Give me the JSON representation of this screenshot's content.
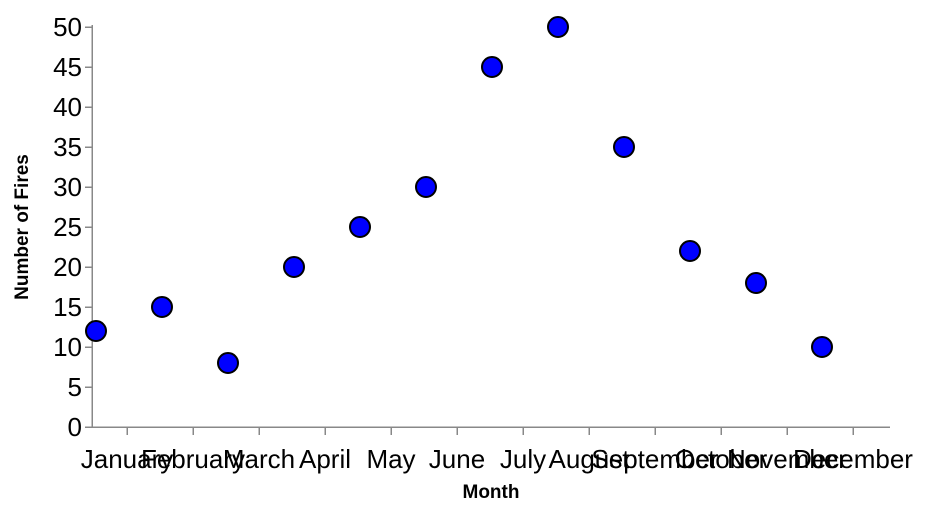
{
  "chart_data": {
    "type": "scatter",
    "title": "",
    "xlabel": "Month",
    "ylabel": "Number of Fires",
    "categories": [
      "January",
      "February",
      "March",
      "April",
      "May",
      "June",
      "July",
      "August",
      "September",
      "October",
      "November",
      "December"
    ],
    "series": [
      {
        "values": [
          12,
          15,
          8,
          20,
          25,
          30,
          45,
          50,
          35,
          22,
          18,
          10
        ]
      }
    ],
    "ylim": [
      0,
      50
    ],
    "yticks": [
      0,
      5,
      10,
      15,
      20,
      25,
      30,
      35,
      40,
      45,
      50
    ],
    "grid": false,
    "colors": {
      "point_fill": "#0000ff",
      "point_stroke": "#000000",
      "axis": "#888888"
    }
  }
}
